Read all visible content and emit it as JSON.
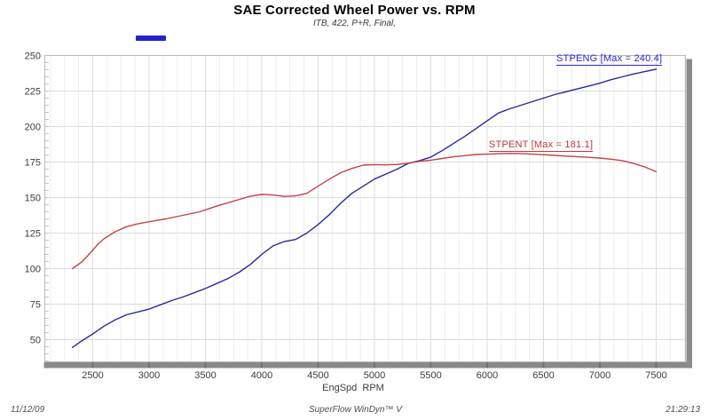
{
  "header": {
    "title": "SAE Corrected Wheel Power vs. RPM",
    "subtitle": "ITB, 422, P+R, Final,"
  },
  "footer": {
    "date": "11/12/09",
    "software": "SuperFlow WinDyn™ V",
    "time": "21:29:13"
  },
  "chart_data": {
    "type": "line",
    "title": "SAE Corrected Wheel Power vs. RPM",
    "subtitle": "ITB, 422, P+R, Final,",
    "xlabel": "EngSpd  RPM",
    "ylabel": "",
    "xlim": [
      2075,
      7760
    ],
    "ylim": [
      34.4,
      250
    ],
    "xticks": [
      2500,
      3000,
      3500,
      4000,
      4500,
      5000,
      5500,
      6000,
      6500,
      7000,
      7500
    ],
    "yticks": [
      50,
      75,
      100,
      125,
      150,
      175,
      200,
      225,
      250
    ],
    "x_minor_step": 125,
    "y_minor_step": 5,
    "grid": true,
    "legend": {
      "swatch_color": "#2323cd",
      "position": "top-left"
    },
    "series": [
      {
        "name": "STPENG",
        "label": "STPENG [Max = 240.4]",
        "max": 240.4,
        "color": "#28289d",
        "label_color": "#2828cc",
        "points": [
          [
            2320,
            44.5
          ],
          [
            2400,
            49
          ],
          [
            2500,
            54
          ],
          [
            2600,
            59.5
          ],
          [
            2700,
            64
          ],
          [
            2800,
            67.5
          ],
          [
            2900,
            69.5
          ],
          [
            3000,
            71.5
          ],
          [
            3100,
            74.5
          ],
          [
            3200,
            77.5
          ],
          [
            3300,
            80
          ],
          [
            3400,
            83
          ],
          [
            3500,
            86
          ],
          [
            3600,
            89.5
          ],
          [
            3700,
            93
          ],
          [
            3800,
            97.5
          ],
          [
            3900,
            103
          ],
          [
            4000,
            110
          ],
          [
            4100,
            116
          ],
          [
            4200,
            119
          ],
          [
            4300,
            120.5
          ],
          [
            4400,
            125
          ],
          [
            4500,
            131
          ],
          [
            4600,
            138
          ],
          [
            4700,
            146
          ],
          [
            4800,
            153
          ],
          [
            4900,
            158
          ],
          [
            5000,
            163
          ],
          [
            5100,
            166.5
          ],
          [
            5200,
            170
          ],
          [
            5300,
            174
          ],
          [
            5400,
            176
          ],
          [
            5500,
            178.5
          ],
          [
            5600,
            183
          ],
          [
            5700,
            188
          ],
          [
            5800,
            193
          ],
          [
            5900,
            198.5
          ],
          [
            6000,
            204
          ],
          [
            6100,
            209.5
          ],
          [
            6200,
            212.5
          ],
          [
            6300,
            215
          ],
          [
            6400,
            217.5
          ],
          [
            6500,
            220
          ],
          [
            6600,
            222.5
          ],
          [
            6700,
            224.5
          ],
          [
            6800,
            226.5
          ],
          [
            6900,
            228.5
          ],
          [
            7000,
            230.5
          ],
          [
            7100,
            233
          ],
          [
            7200,
            235
          ],
          [
            7300,
            237
          ],
          [
            7400,
            238.7
          ],
          [
            7500,
            240.4
          ]
        ]
      },
      {
        "name": "STPENT",
        "label": "STPENT [Max = 181.1]",
        "max": 181.1,
        "color": "#c14444",
        "label_color": "#c53535",
        "points": [
          [
            2320,
            100
          ],
          [
            2400,
            104.5
          ],
          [
            2450,
            108.5
          ],
          [
            2500,
            113
          ],
          [
            2550,
            117.5
          ],
          [
            2600,
            121
          ],
          [
            2700,
            126
          ],
          [
            2800,
            129.5
          ],
          [
            2900,
            131.5
          ],
          [
            3000,
            133
          ],
          [
            3150,
            135
          ],
          [
            3300,
            137.5
          ],
          [
            3450,
            140
          ],
          [
            3600,
            144
          ],
          [
            3750,
            147.5
          ],
          [
            3900,
            151
          ],
          [
            4000,
            152.2
          ],
          [
            4100,
            151.8
          ],
          [
            4200,
            150.8
          ],
          [
            4300,
            151.2
          ],
          [
            4400,
            153
          ],
          [
            4500,
            158
          ],
          [
            4600,
            163
          ],
          [
            4700,
            167.5
          ],
          [
            4800,
            170.5
          ],
          [
            4900,
            172.8
          ],
          [
            5000,
            173.2
          ],
          [
            5100,
            173
          ],
          [
            5200,
            173.3
          ],
          [
            5300,
            174.2
          ],
          [
            5400,
            175.5
          ],
          [
            5500,
            176.3
          ],
          [
            5600,
            177.5
          ],
          [
            5700,
            178.7
          ],
          [
            5800,
            179.5
          ],
          [
            5900,
            180.3
          ],
          [
            6000,
            180.6
          ],
          [
            6100,
            180.9
          ],
          [
            6200,
            181.1
          ],
          [
            6300,
            181
          ],
          [
            6400,
            180.6
          ],
          [
            6500,
            180.2
          ],
          [
            6600,
            179.7
          ],
          [
            6700,
            179.2
          ],
          [
            6800,
            178.8
          ],
          [
            6900,
            178.3
          ],
          [
            7000,
            177.8
          ],
          [
            7100,
            177
          ],
          [
            7200,
            176
          ],
          [
            7300,
            174
          ],
          [
            7400,
            171.5
          ],
          [
            7500,
            168.2
          ]
        ]
      }
    ]
  }
}
